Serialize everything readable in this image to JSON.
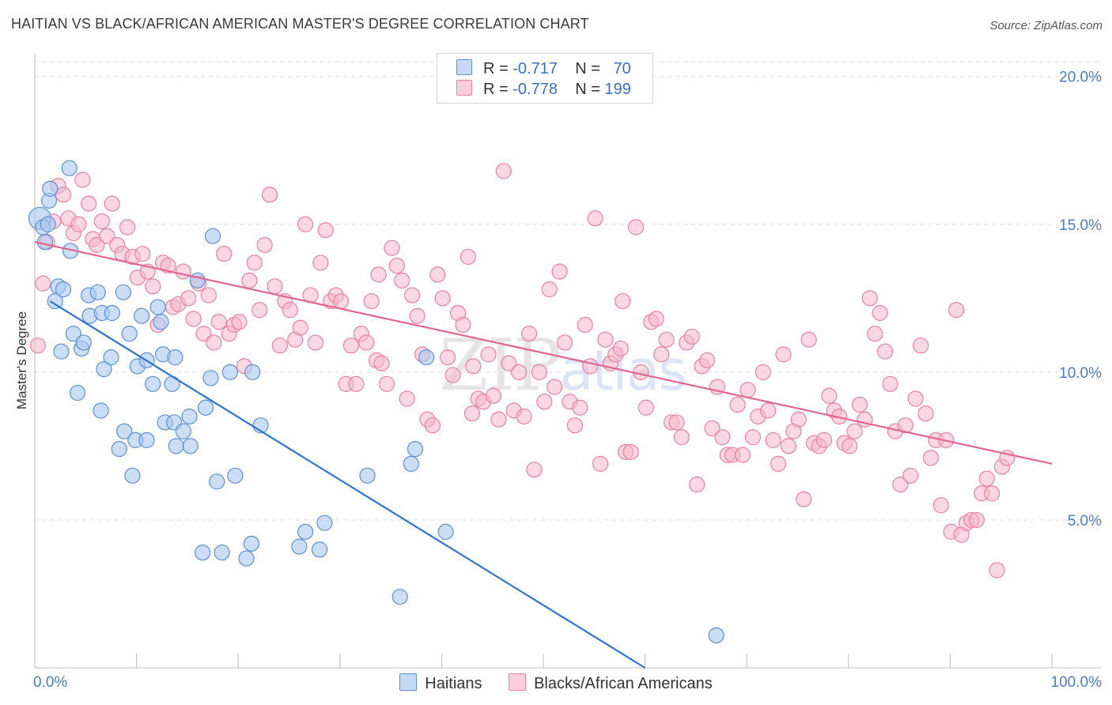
{
  "title": "HAITIAN VS BLACK/AFRICAN AMERICAN MASTER'S DEGREE CORRELATION CHART",
  "source": "Source: ZipAtlas.com",
  "watermark": {
    "zip": "ZIP",
    "atlas": "atlas"
  },
  "legend": {
    "r_label": "R =",
    "n_label": "N =",
    "rows": [
      {
        "r": "-0.717",
        "n": "70",
        "color": "#a9c8f0"
      },
      {
        "r": "-0.778",
        "n": "199",
        "color": "#f5b7cb"
      }
    ]
  },
  "colors": {
    "haitian_fill": "#a9c8f0",
    "haitian_stroke": "#5b8fd6",
    "haitian_line": "#2f74d0",
    "black_fill": "#f5b7cb",
    "black_stroke": "#e8829f",
    "black_line": "#e06690",
    "tick": "#4a7cc9"
  },
  "chart_data": {
    "type": "scatter",
    "title": "HAITIAN VS BLACK/AFRICAN AMERICAN MASTER'S DEGREE CORRELATION CHART",
    "xlabel": "",
    "ylabel": "Master's Degree",
    "xlim": [
      0,
      100
    ],
    "ylim": [
      0,
      20.5
    ],
    "x_tick_labels": [
      {
        "v": 0,
        "t": "0.0%"
      },
      {
        "v": 100,
        "t": "100.0%"
      }
    ],
    "y_tick_labels": [
      {
        "v": 5,
        "t": "5.0%"
      },
      {
        "v": 10,
        "t": "10.0%"
      },
      {
        "v": 15,
        "t": "15.0%"
      },
      {
        "v": 20,
        "t": "20.0%"
      }
    ],
    "legend_position": "top-center",
    "series": [
      {
        "name": "Haitians",
        "r": -0.717,
        "n": 70,
        "trend": {
          "x0": 1.5,
          "y0": 12.4,
          "x1": 60,
          "y1": 0
        },
        "points": [
          [
            0.5,
            15.2
          ],
          [
            0.8,
            14.9
          ],
          [
            1.0,
            14.4
          ],
          [
            1.4,
            15.8
          ],
          [
            1.5,
            16.2
          ],
          [
            3.4,
            16.9
          ],
          [
            3.5,
            14.1
          ],
          [
            2.0,
            12.4
          ],
          [
            2.3,
            12.9
          ],
          [
            2.8,
            12.8
          ],
          [
            2.6,
            10.7
          ],
          [
            3.8,
            11.3
          ],
          [
            4.6,
            10.8
          ],
          [
            4.8,
            11.0
          ],
          [
            5.4,
            11.9
          ],
          [
            5.3,
            12.6
          ],
          [
            6.2,
            12.7
          ],
          [
            6.6,
            12.0
          ],
          [
            7.6,
            12.0
          ],
          [
            8.7,
            12.7
          ],
          [
            4.2,
            9.3
          ],
          [
            6.5,
            8.7
          ],
          [
            6.8,
            10.1
          ],
          [
            7.5,
            10.5
          ],
          [
            9.3,
            11.3
          ],
          [
            10.1,
            10.2
          ],
          [
            10.5,
            11.9
          ],
          [
            11.0,
            10.4
          ],
          [
            12.1,
            12.2
          ],
          [
            12.4,
            11.7
          ],
          [
            12.6,
            10.6
          ],
          [
            11.6,
            9.6
          ],
          [
            13.5,
            9.6
          ],
          [
            13.8,
            10.5
          ],
          [
            12.8,
            8.3
          ],
          [
            13.7,
            8.3
          ],
          [
            15.2,
            8.5
          ],
          [
            16.8,
            8.8
          ],
          [
            14.6,
            8.0
          ],
          [
            8.8,
            8.0
          ],
          [
            9.9,
            7.7
          ],
          [
            11.0,
            7.7
          ],
          [
            8.3,
            7.4
          ],
          [
            13.9,
            7.5
          ],
          [
            15.3,
            7.5
          ],
          [
            17.3,
            9.8
          ],
          [
            19.2,
            10.0
          ],
          [
            21.4,
            10.0
          ],
          [
            22.2,
            8.2
          ],
          [
            16.0,
            13.1
          ],
          [
            17.5,
            14.6
          ],
          [
            9.6,
            6.5
          ],
          [
            17.9,
            6.3
          ],
          [
            19.7,
            6.5
          ],
          [
            26.6,
            4.6
          ],
          [
            28.5,
            4.9
          ],
          [
            26.0,
            4.1
          ],
          [
            28.0,
            4.0
          ],
          [
            21.3,
            4.2
          ],
          [
            20.8,
            3.7
          ],
          [
            16.5,
            3.9
          ],
          [
            18.4,
            3.9
          ],
          [
            32.7,
            6.5
          ],
          [
            37.4,
            7.4
          ],
          [
            37.0,
            6.9
          ],
          [
            40.4,
            4.6
          ],
          [
            38.5,
            10.5
          ],
          [
            35.9,
            2.4
          ],
          [
            67.0,
            1.1
          ],
          [
            1.3,
            15.0
          ]
        ]
      },
      {
        "name": "Blacks/African Americans",
        "r": -0.778,
        "n": 199,
        "trend": {
          "x0": 0,
          "y0": 14.4,
          "x1": 100,
          "y1": 6.9
        },
        "points": [
          [
            0.3,
            10.9
          ],
          [
            0.8,
            13.0
          ],
          [
            1.2,
            14.4
          ],
          [
            1.8,
            15.1
          ],
          [
            2.3,
            16.3
          ],
          [
            2.8,
            16.0
          ],
          [
            3.3,
            15.2
          ],
          [
            3.8,
            14.7
          ],
          [
            4.3,
            15.0
          ],
          [
            4.7,
            16.5
          ],
          [
            5.3,
            15.7
          ],
          [
            5.7,
            14.5
          ],
          [
            6.1,
            14.3
          ],
          [
            6.6,
            15.1
          ],
          [
            7.1,
            14.6
          ],
          [
            7.6,
            15.7
          ],
          [
            8.1,
            14.3
          ],
          [
            8.6,
            14.0
          ],
          [
            9.1,
            14.9
          ],
          [
            9.6,
            13.9
          ],
          [
            10.1,
            13.2
          ],
          [
            10.6,
            14.0
          ],
          [
            11.1,
            13.4
          ],
          [
            11.6,
            12.9
          ],
          [
            12.1,
            11.6
          ],
          [
            12.6,
            13.7
          ],
          [
            13.1,
            13.6
          ],
          [
            13.6,
            12.2
          ],
          [
            14.1,
            12.3
          ],
          [
            14.6,
            13.4
          ],
          [
            15.1,
            12.5
          ],
          [
            15.6,
            11.8
          ],
          [
            16.1,
            13.0
          ],
          [
            16.6,
            11.3
          ],
          [
            17.1,
            12.6
          ],
          [
            17.6,
            11.0
          ],
          [
            18.1,
            11.7
          ],
          [
            18.6,
            14.0
          ],
          [
            19.1,
            11.3
          ],
          [
            19.6,
            11.6
          ],
          [
            20.1,
            11.7
          ],
          [
            20.6,
            10.2
          ],
          [
            21.1,
            13.1
          ],
          [
            21.6,
            13.7
          ],
          [
            22.1,
            12.1
          ],
          [
            22.6,
            14.3
          ],
          [
            23.1,
            16.0
          ],
          [
            23.6,
            12.9
          ],
          [
            24.1,
            10.9
          ],
          [
            24.6,
            12.4
          ],
          [
            25.1,
            12.1
          ],
          [
            25.6,
            11.1
          ],
          [
            26.1,
            11.5
          ],
          [
            26.6,
            15.0
          ],
          [
            27.1,
            12.6
          ],
          [
            27.6,
            11.0
          ],
          [
            28.1,
            13.7
          ],
          [
            28.6,
            14.8
          ],
          [
            29.1,
            12.4
          ],
          [
            29.6,
            12.6
          ],
          [
            30.1,
            12.4
          ],
          [
            30.6,
            9.6
          ],
          [
            31.1,
            10.9
          ],
          [
            31.6,
            9.6
          ],
          [
            32.1,
            11.3
          ],
          [
            32.6,
            11.0
          ],
          [
            33.1,
            12.4
          ],
          [
            33.6,
            10.4
          ],
          [
            34.1,
            10.3
          ],
          [
            34.6,
            9.6
          ],
          [
            35.1,
            14.2
          ],
          [
            35.6,
            13.6
          ],
          [
            36.1,
            13.1
          ],
          [
            36.6,
            9.1
          ],
          [
            37.1,
            12.6
          ],
          [
            37.6,
            11.9
          ],
          [
            38.1,
            10.6
          ],
          [
            38.6,
            8.4
          ],
          [
            39.1,
            8.2
          ],
          [
            39.6,
            13.3
          ],
          [
            40.1,
            12.5
          ],
          [
            40.6,
            10.5
          ],
          [
            41.1,
            9.9
          ],
          [
            41.6,
            12.0
          ],
          [
            42.1,
            11.6
          ],
          [
            42.6,
            13.9
          ],
          [
            43.1,
            10.2
          ],
          [
            43.6,
            9.1
          ],
          [
            44.1,
            9.0
          ],
          [
            44.6,
            10.6
          ],
          [
            45.1,
            9.2
          ],
          [
            45.6,
            8.4
          ],
          [
            46.1,
            16.8
          ],
          [
            46.6,
            10.3
          ],
          [
            47.1,
            8.7
          ],
          [
            47.6,
            10.0
          ],
          [
            48.1,
            8.5
          ],
          [
            48.6,
            11.3
          ],
          [
            49.1,
            6.7
          ],
          [
            49.6,
            10.0
          ],
          [
            50.1,
            9.0
          ],
          [
            50.6,
            12.8
          ],
          [
            51.1,
            9.5
          ],
          [
            51.6,
            13.4
          ],
          [
            52.1,
            11.0
          ],
          [
            52.6,
            9.0
          ],
          [
            53.1,
            8.2
          ],
          [
            53.6,
            8.8
          ],
          [
            54.1,
            11.6
          ],
          [
            54.6,
            10.2
          ],
          [
            55.1,
            15.2
          ],
          [
            55.6,
            6.9
          ],
          [
            56.1,
            11.1
          ],
          [
            56.6,
            10.3
          ],
          [
            57.1,
            10.6
          ],
          [
            57.6,
            10.8
          ],
          [
            58.1,
            7.3
          ],
          [
            58.6,
            7.3
          ],
          [
            59.1,
            14.9
          ],
          [
            59.6,
            10.0
          ],
          [
            60.1,
            8.8
          ],
          [
            60.6,
            11.7
          ],
          [
            61.1,
            11.8
          ],
          [
            61.6,
            10.6
          ],
          [
            62.1,
            11.1
          ],
          [
            62.6,
            8.3
          ],
          [
            63.1,
            8.3
          ],
          [
            63.6,
            7.8
          ],
          [
            64.1,
            11.0
          ],
          [
            64.6,
            11.2
          ],
          [
            65.1,
            6.2
          ],
          [
            65.6,
            10.2
          ],
          [
            66.1,
            10.4
          ],
          [
            66.6,
            8.1
          ],
          [
            67.1,
            9.5
          ],
          [
            67.6,
            7.8
          ],
          [
            68.1,
            7.2
          ],
          [
            68.6,
            7.2
          ],
          [
            69.1,
            8.9
          ],
          [
            69.6,
            7.2
          ],
          [
            70.1,
            9.4
          ],
          [
            70.6,
            7.8
          ],
          [
            71.1,
            8.5
          ],
          [
            71.6,
            10.0
          ],
          [
            72.1,
            8.7
          ],
          [
            72.6,
            7.7
          ],
          [
            73.1,
            6.9
          ],
          [
            73.6,
            10.6
          ],
          [
            74.1,
            7.5
          ],
          [
            74.6,
            8.0
          ],
          [
            75.1,
            8.4
          ],
          [
            75.6,
            5.7
          ],
          [
            76.1,
            11.1
          ],
          [
            76.6,
            7.6
          ],
          [
            77.1,
            7.5
          ],
          [
            77.6,
            7.7
          ],
          [
            78.1,
            9.2
          ],
          [
            78.6,
            8.7
          ],
          [
            79.1,
            8.5
          ],
          [
            79.6,
            7.6
          ],
          [
            80.1,
            7.5
          ],
          [
            80.6,
            8.0
          ],
          [
            81.1,
            8.9
          ],
          [
            81.6,
            8.4
          ],
          [
            82.1,
            12.5
          ],
          [
            82.6,
            11.3
          ],
          [
            83.1,
            12.0
          ],
          [
            83.6,
            10.7
          ],
          [
            84.1,
            9.6
          ],
          [
            84.6,
            8.0
          ],
          [
            85.1,
            6.2
          ],
          [
            85.6,
            8.2
          ],
          [
            86.1,
            6.5
          ],
          [
            86.6,
            9.1
          ],
          [
            87.1,
            10.9
          ],
          [
            87.6,
            8.6
          ],
          [
            88.1,
            7.1
          ],
          [
            88.6,
            7.7
          ],
          [
            89.1,
            5.5
          ],
          [
            89.6,
            7.7
          ],
          [
            90.1,
            4.6
          ],
          [
            90.6,
            12.1
          ],
          [
            91.1,
            4.5
          ],
          [
            91.6,
            4.9
          ],
          [
            92.1,
            5.0
          ],
          [
            92.6,
            5.0
          ],
          [
            93.1,
            5.9
          ],
          [
            93.6,
            6.4
          ],
          [
            94.1,
            5.9
          ],
          [
            94.6,
            3.3
          ],
          [
            95.1,
            6.8
          ],
          [
            95.6,
            7.1
          ],
          [
            57.8,
            12.4
          ],
          [
            33.8,
            13.3
          ],
          [
            43.0,
            8.6
          ]
        ]
      }
    ]
  }
}
